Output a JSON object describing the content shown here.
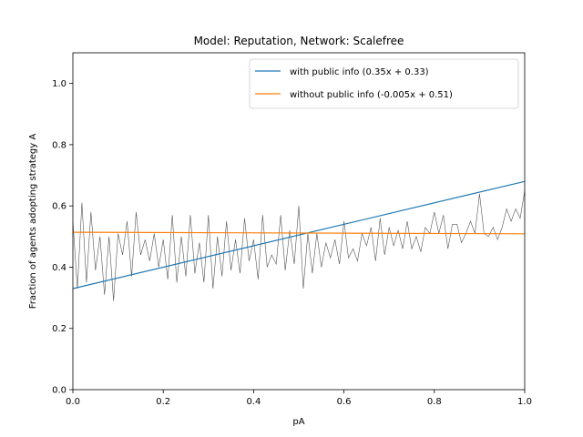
{
  "chart_data": {
    "type": "line",
    "title": "Model: Reputation, Network: Scalefree",
    "xlabel": "pA",
    "ylabel": "Fraction of agents adopting strategy A",
    "xlim": [
      0.0,
      1.0
    ],
    "ylim": [
      0.0,
      1.1
    ],
    "xticks": [
      0.0,
      0.2,
      0.4,
      0.6,
      0.8,
      1.0
    ],
    "yticks": [
      0.0,
      0.2,
      0.4,
      0.6,
      0.8,
      1.0
    ],
    "xtick_labels": [
      "0.0",
      "0.2",
      "0.4",
      "0.6",
      "0.8",
      "1.0"
    ],
    "ytick_labels": [
      "0.0",
      "0.2",
      "0.4",
      "0.6",
      "0.8",
      "1.0"
    ],
    "grid": false,
    "legend_position": "top-right",
    "series": [
      {
        "name": "with public info (0.35x + 0.33)",
        "kind": "fit",
        "color": "#1f77b4",
        "slope": 0.35,
        "intercept": 0.33
      },
      {
        "name": "without public info (-0.005x + 0.51)",
        "kind": "fit",
        "color": "#ff7f0e",
        "slope": -0.005,
        "intercept": 0.514
      },
      {
        "kind": "raw",
        "color": "#555555",
        "x": [
          0.0,
          0.01,
          0.02,
          0.03,
          0.04,
          0.05,
          0.06,
          0.07,
          0.08,
          0.09,
          0.1,
          0.11,
          0.12,
          0.13,
          0.14,
          0.15,
          0.16,
          0.17,
          0.18,
          0.19,
          0.2,
          0.21,
          0.22,
          0.23,
          0.24,
          0.25,
          0.26,
          0.27,
          0.28,
          0.29,
          0.3,
          0.31,
          0.32,
          0.33,
          0.34,
          0.35,
          0.36,
          0.37,
          0.38,
          0.39,
          0.4,
          0.41,
          0.42,
          0.43,
          0.44,
          0.45,
          0.46,
          0.47,
          0.48,
          0.49,
          0.5,
          0.51,
          0.52,
          0.53,
          0.54,
          0.55,
          0.56,
          0.57,
          0.58,
          0.59,
          0.6,
          0.61,
          0.62,
          0.63,
          0.64,
          0.65,
          0.66,
          0.67,
          0.68,
          0.69,
          0.7,
          0.71,
          0.72,
          0.73,
          0.74,
          0.75,
          0.76,
          0.77,
          0.78,
          0.79,
          0.8,
          0.81,
          0.82,
          0.83,
          0.84,
          0.85,
          0.86,
          0.87,
          0.88,
          0.89,
          0.9,
          0.91,
          0.92,
          0.93,
          0.94,
          0.95,
          0.96,
          0.97,
          0.98,
          0.99,
          1.0
        ],
        "y": [
          0.55,
          0.33,
          0.61,
          0.35,
          0.58,
          0.39,
          0.5,
          0.31,
          0.5,
          0.29,
          0.51,
          0.44,
          0.55,
          0.37,
          0.58,
          0.44,
          0.49,
          0.42,
          0.51,
          0.4,
          0.49,
          0.36,
          0.57,
          0.35,
          0.5,
          0.37,
          0.57,
          0.38,
          0.48,
          0.35,
          0.57,
          0.33,
          0.5,
          0.37,
          0.55,
          0.39,
          0.49,
          0.38,
          0.56,
          0.42,
          0.49,
          0.36,
          0.57,
          0.4,
          0.44,
          0.41,
          0.57,
          0.39,
          0.52,
          0.41,
          0.6,
          0.33,
          0.51,
          0.38,
          0.51,
          0.4,
          0.48,
          0.43,
          0.49,
          0.41,
          0.55,
          0.43,
          0.46,
          0.42,
          0.51,
          0.47,
          0.53,
          0.42,
          0.56,
          0.44,
          0.53,
          0.47,
          0.52,
          0.46,
          0.55,
          0.46,
          0.5,
          0.45,
          0.53,
          0.51,
          0.58,
          0.51,
          0.57,
          0.46,
          0.54,
          0.54,
          0.48,
          0.51,
          0.55,
          0.51,
          0.64,
          0.51,
          0.5,
          0.53,
          0.49,
          0.53,
          0.59,
          0.55,
          0.59,
          0.56,
          0.65
        ]
      }
    ]
  }
}
